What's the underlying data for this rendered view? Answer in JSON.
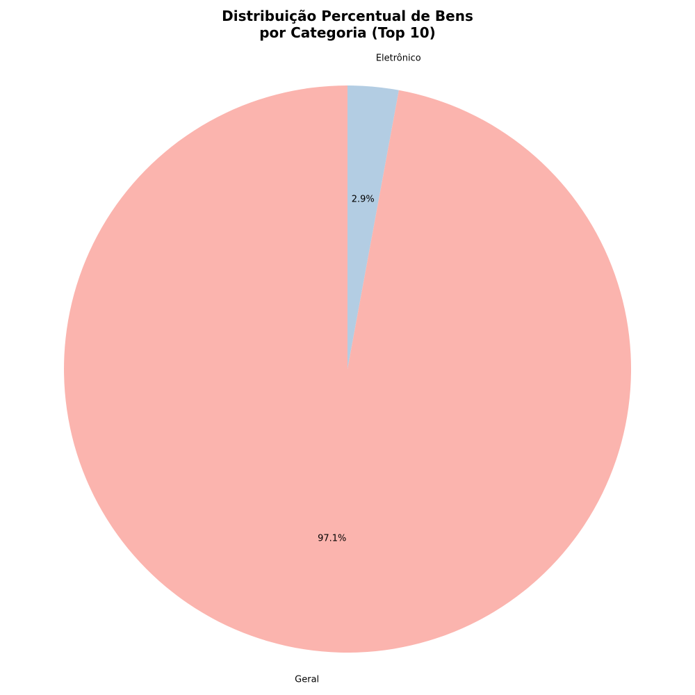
{
  "chart_data": {
    "type": "pie",
    "title_lines": [
      "Distribuição Percentual de Bens",
      "por Categoria (Top 10)"
    ],
    "slices": [
      {
        "label": "Eletrônico",
        "value": 2.9,
        "pct_label": "2.9%",
        "color": "#b3cde3"
      },
      {
        "label": "Geral",
        "value": 97.1,
        "pct_label": "97.1%",
        "color": "#fbb4ae"
      }
    ],
    "start_angle_deg": 90,
    "direction": "clockwise",
    "legend": "none"
  }
}
